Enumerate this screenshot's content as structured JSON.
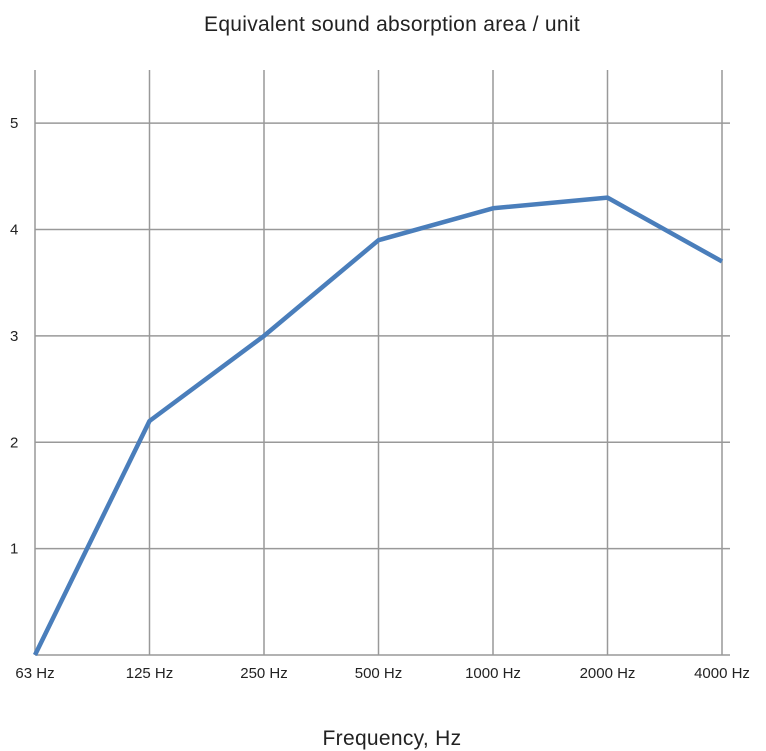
{
  "chart_data": {
    "type": "line",
    "title": "Equivalent sound absorption area / unit",
    "xlabel": "Frequency, Hz",
    "ylabel": "",
    "categories": [
      "63 Hz",
      "125 Hz",
      "250 Hz",
      "500 Hz",
      "1000 Hz",
      "2000 Hz",
      "4000 Hz"
    ],
    "y_ticks": [
      "1",
      "2",
      "3",
      "4",
      "5"
    ],
    "ylim": [
      0,
      5.5
    ],
    "grid": true,
    "legend": "none",
    "series": [
      {
        "values": [
          0,
          2.2,
          3.0,
          3.9,
          4.2,
          4.3,
          3.7
        ],
        "color": "#4a7ebb"
      }
    ]
  }
}
